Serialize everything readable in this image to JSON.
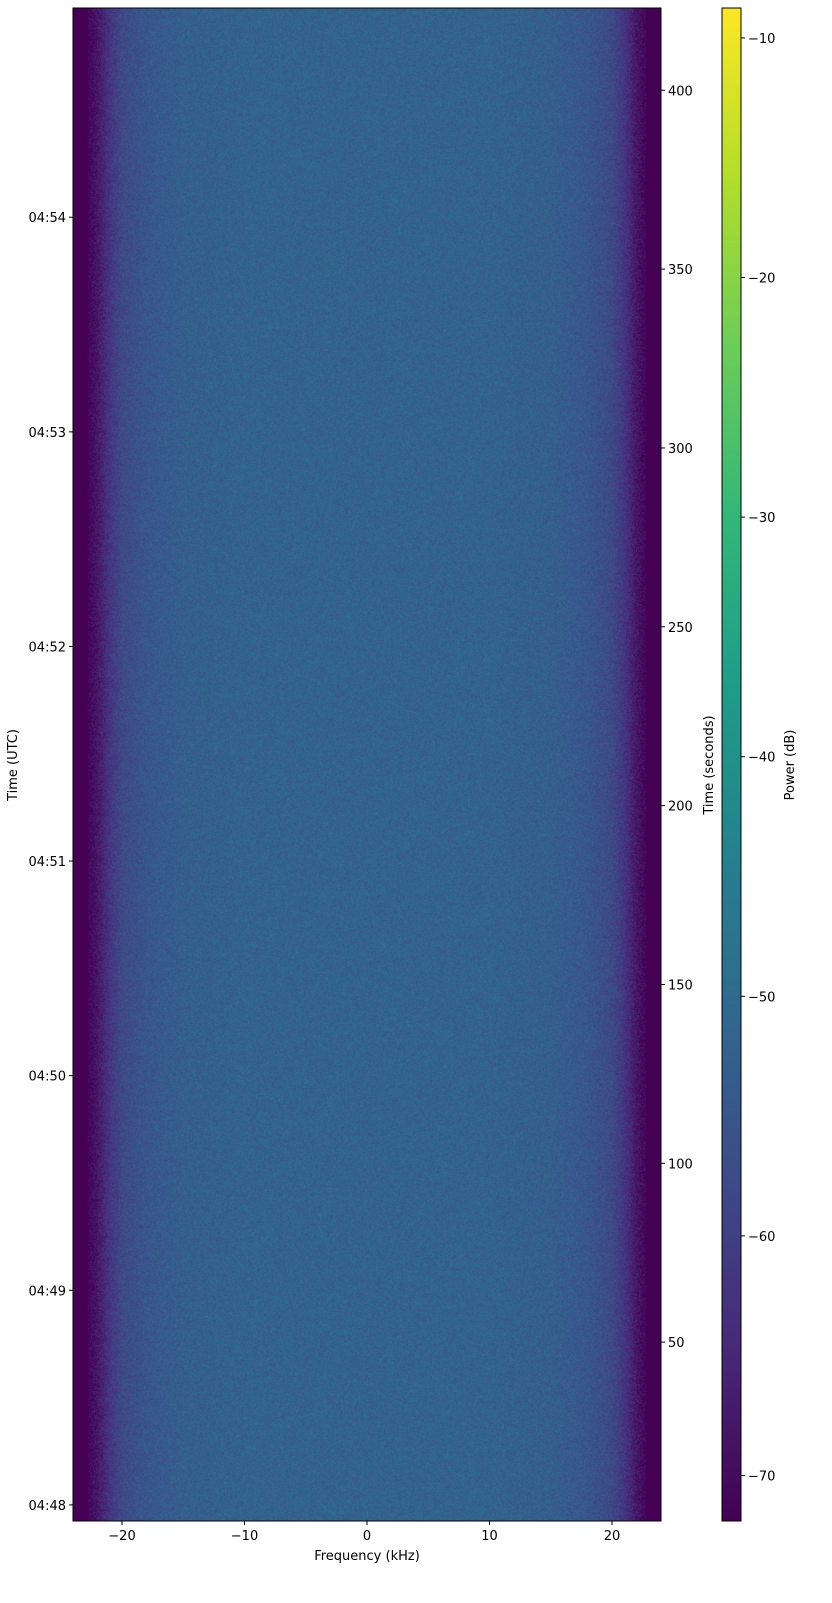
{
  "chart_data": {
    "type": "heatmap",
    "xlabel": "Frequency (kHz)",
    "ylabel_left": "Time (UTC)",
    "ylabel_right": "Time (seconds)",
    "colorbar_label": "Power (dB)",
    "colormap": "viridis",
    "xlim": [
      -24,
      24
    ],
    "ylim_seconds": [
      0,
      423
    ],
    "x_ticks": [
      -20,
      -10,
      0,
      10,
      20
    ],
    "x_tick_labels": [
      "−20",
      "−10",
      "0",
      "10",
      "20"
    ],
    "right_ticks": [
      50,
      100,
      150,
      200,
      250,
      300,
      350,
      400
    ],
    "right_tick_labels": [
      "50",
      "100",
      "150",
      "200",
      "250",
      "300",
      "350",
      "400"
    ],
    "left_ticks_seconds": [
      4.5,
      64.5,
      124.5,
      184.5,
      244.5,
      304.5,
      364.5
    ],
    "left_tick_labels": [
      "04:48",
      "04:49",
      "04:50",
      "04:51",
      "04:52",
      "04:53",
      "04:54"
    ],
    "clim": [
      -71.9,
      -8.75
    ],
    "colorbar_ticks": [
      -70,
      -60,
      -50,
      -40,
      -30,
      -20,
      -10
    ],
    "colorbar_tick_labels": [
      "−70",
      "−60",
      "−50",
      "−40",
      "−30",
      "−20",
      "−10"
    ],
    "frequency_profile": {
      "frequency_khz": [
        -24,
        -23,
        -22,
        -21,
        -20,
        -18,
        -15,
        -10,
        0,
        10,
        15,
        18,
        20,
        21,
        22,
        23,
        24
      ],
      "mean_power_db": [
        -72,
        -72,
        -68,
        -62,
        -58,
        -55,
        -53,
        -52,
        -52,
        -52,
        -53,
        -55,
        -58,
        -62,
        -68,
        -72,
        -72
      ]
    }
  }
}
